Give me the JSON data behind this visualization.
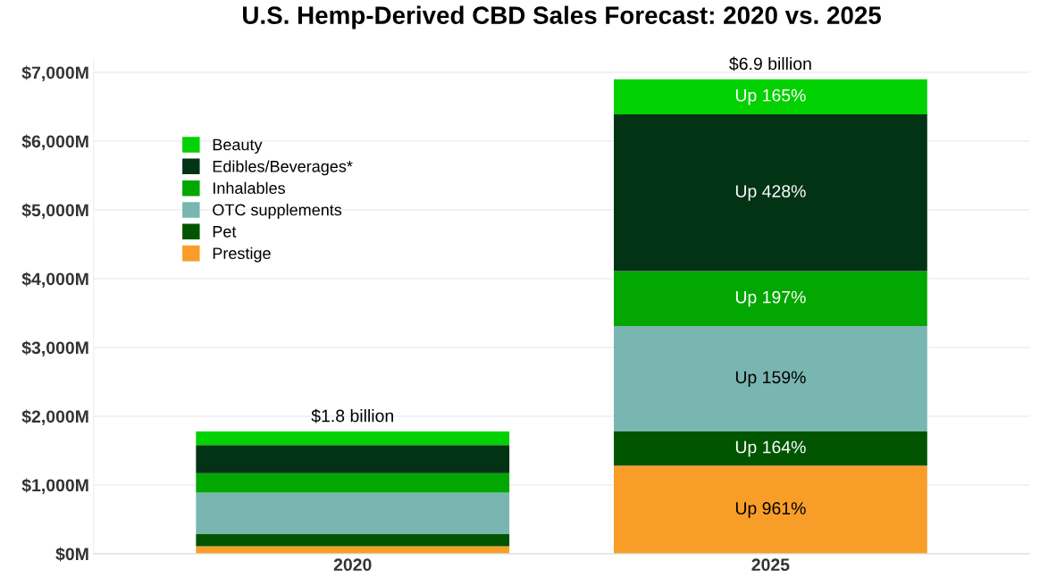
{
  "chart_data": {
    "type": "bar",
    "title": "U.S. Hemp-Derived CBD Sales Forecast: 2020 vs. 2025",
    "categories": [
      "2020",
      "2025"
    ],
    "stacked": true,
    "series": [
      {
        "name": "Prestige",
        "color": "#f89e28",
        "values": [
          110,
          1280
        ],
        "value_labels": [
          null,
          "Up 961%"
        ]
      },
      {
        "name": "Pet",
        "color": "#015501",
        "values": [
          180,
          500
        ],
        "value_labels": [
          null,
          "Up 164%"
        ]
      },
      {
        "name": "OTC supplements",
        "color": "#7ab6b1",
        "values": [
          600,
          1530
        ],
        "value_labels": [
          null,
          "Up 159%"
        ]
      },
      {
        "name": "Inhalables",
        "color": "#02a702",
        "values": [
          280,
          800
        ],
        "value_labels": [
          null,
          "Up 197%"
        ]
      },
      {
        "name": "Edibles/Beverages*",
        "color": "#023315",
        "values": [
          410,
          2280
        ],
        "value_labels": [
          null,
          "Up 428%"
        ]
      },
      {
        "name": "Beauty",
        "color": "#02d102",
        "values": [
          200,
          510
        ],
        "value_labels": [
          null,
          "Up 165%"
        ]
      }
    ],
    "totals": [
      "$1.8 billion",
      "$6.9 billion"
    ],
    "ylim": [
      0,
      7200
    ],
    "yticks": [
      {
        "value": 0,
        "label": "$0M"
      },
      {
        "value": 1000,
        "label": "$1,000M"
      },
      {
        "value": 2000,
        "label": "$2,000M"
      },
      {
        "value": 3000,
        "label": "$3,000M"
      },
      {
        "value": 4000,
        "label": "$4,000M"
      },
      {
        "value": 5000,
        "label": "$5,000M"
      },
      {
        "value": 6000,
        "label": "$6,000M"
      },
      {
        "value": 7000,
        "label": "$7,000M"
      }
    ],
    "grid": "y",
    "legend": "top left"
  }
}
